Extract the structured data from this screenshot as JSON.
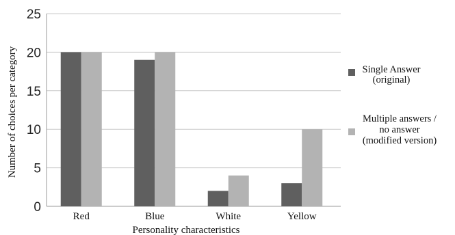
{
  "chart_data": {
    "type": "bar",
    "categories": [
      "Red",
      "Blue",
      "White",
      "Yellow"
    ],
    "series": [
      {
        "name": [
          "Single Answer",
          "(original)"
        ],
        "values": [
          20,
          19,
          2,
          3
        ],
        "color": "#5f5f5f"
      },
      {
        "name": [
          "Multiple answers /",
          "no answer",
          "(modified version)"
        ],
        "values": [
          20,
          20,
          4,
          10
        ],
        "color": "#b3b3b3"
      }
    ],
    "xlabel": "Personality characteristics",
    "ylabel": "Number of choices per category",
    "ylim": [
      0,
      25
    ],
    "yticks": [
      "0",
      "5",
      "10",
      "15",
      "20",
      "25"
    ],
    "grid": true,
    "legend_position": "right"
  }
}
